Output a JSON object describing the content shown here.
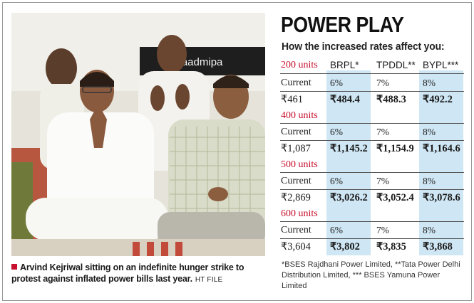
{
  "title": "POWER PLAY",
  "subtitle": "How the increased rates affect you:",
  "photo": {
    "banner_text": "amaadmipa",
    "caption": "Arvind Kejriwal sitting on an indefinite hunger strike to protest against inflated power bills last year.",
    "credit": "HT FILE",
    "accent_color": "#c8102e"
  },
  "table": {
    "companies": [
      "BRPL*",
      "TPDDL**",
      "BYPL***"
    ],
    "current_label": "Current",
    "shaded_color": "#cfe6f4",
    "tiers": [
      {
        "units": "200 units",
        "pcts": [
          "6%",
          "7%",
          "8%"
        ],
        "current": "₹461",
        "new": [
          "₹484.4",
          "₹488.3",
          "₹492.2"
        ]
      },
      {
        "units": "400 units",
        "pcts": [
          "6%",
          "7%",
          "8%"
        ],
        "current": "₹1,087",
        "new": [
          "₹1,145.2",
          "₹1,154.9",
          "₹1,164.6"
        ]
      },
      {
        "units": "500 units",
        "pcts": [
          "6%",
          "7%",
          "8%"
        ],
        "current": "₹2,869",
        "new": [
          "₹3,026.2",
          "₹3,052.4",
          "₹3,078.6"
        ]
      },
      {
        "units": "600 units",
        "pcts": [
          "6%",
          "7%",
          "8%"
        ],
        "current": "₹3,604",
        "new": [
          "₹3,802",
          "₹3,835",
          "₹3,868"
        ]
      }
    ]
  },
  "footnote": "*BSES Rajdhani Power Limited, **Tata Power Delhi Distribution Limited, *** BSES Yamuna Power Limited"
}
